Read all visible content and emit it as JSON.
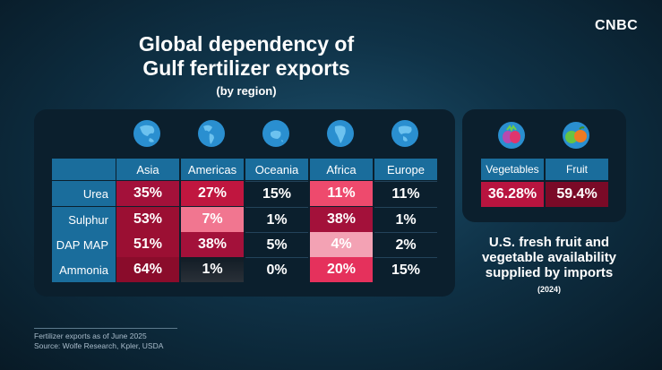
{
  "brand": "CNBC",
  "left_chart": {
    "title_line1": "Global dependency of",
    "title_line2": "Gulf fertilizer exports",
    "subtitle": "(by region)"
  },
  "right_chart": {
    "title_line1": "U.S. fresh fruit and",
    "title_line2": "vegetable availability",
    "title_line3": "supplied by imports",
    "subtitle": "(2024)"
  },
  "footnote": {
    "line1": "Fertilizer exports as of June 2025",
    "line2": "Source: Wolfe Research, Kpler, USDA"
  },
  "icons": {
    "globes": [
      "asia-globe-icon",
      "americas-globe-icon",
      "oceania-globe-icon",
      "africa-globe-icon",
      "europe-globe-icon"
    ],
    "produce": [
      "vegetables-icon",
      "fruit-icon"
    ]
  },
  "colors": {
    "header_blue": "#1a6d9c",
    "panel": "#0b1f2d",
    "scale_low": "#f47a95",
    "scale_high": "#7a0a27"
  },
  "chart_data": [
    {
      "type": "table",
      "title": "Global dependency of Gulf fertilizer exports",
      "subtitle": "(by region)",
      "columns": [
        "Asia",
        "Americas",
        "Oceania",
        "Africa",
        "Europe"
      ],
      "rows": [
        "Urea",
        "Sulphur",
        "DAP MAP",
        "Ammonia"
      ],
      "values": [
        [
          35,
          27,
          15,
          11,
          11
        ],
        [
          53,
          7,
          1,
          38,
          1
        ],
        [
          51,
          38,
          5,
          4,
          2
        ],
        [
          64,
          1,
          0,
          20,
          15
        ]
      ],
      "labels": [
        [
          "35%",
          "27%",
          "15%",
          "11%",
          "11%"
        ],
        [
          "53%",
          "7%",
          "1%",
          "38%",
          "1%"
        ],
        [
          "51%",
          "38%",
          "5%",
          "4%",
          "2%"
        ],
        [
          "64%",
          "1%",
          "0%",
          "20%",
          "15%"
        ]
      ]
    },
    {
      "type": "table",
      "title": "U.S. fresh fruit and vegetable availability supplied by imports",
      "subtitle": "(2024)",
      "columns": [
        "Vegetables",
        "Fruit"
      ],
      "values": [
        36.28,
        59.4
      ],
      "labels": [
        "36.28%",
        "59.4%"
      ]
    }
  ]
}
